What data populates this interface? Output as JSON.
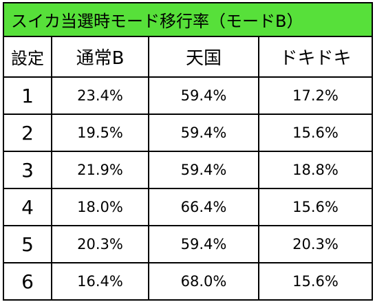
{
  "header": {
    "title": "スイカ当選時モード移行率（モードB）"
  },
  "table": {
    "columns": [
      "設定",
      "通常B",
      "天国",
      "ドキドキ"
    ],
    "rows": [
      [
        "1",
        "23.4%",
        "59.4%",
        "17.2%"
      ],
      [
        "2",
        "19.5%",
        "59.4%",
        "15.6%"
      ],
      [
        "3",
        "21.9%",
        "59.4%",
        "18.8%"
      ],
      [
        "4",
        "18.0%",
        "66.4%",
        "15.6%"
      ],
      [
        "5",
        "20.3%",
        "59.4%",
        "20.3%"
      ],
      [
        "6",
        "16.4%",
        "68.0%",
        "15.6%"
      ]
    ]
  }
}
